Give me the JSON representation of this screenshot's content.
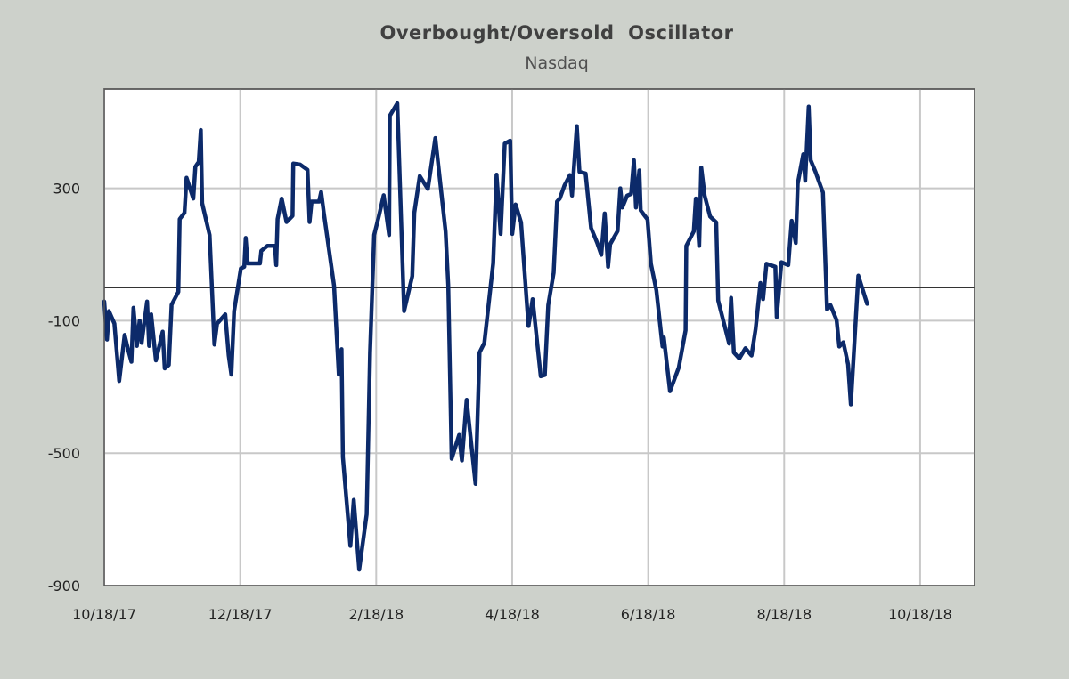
{
  "chart_data": {
    "type": "line",
    "title": "Overbought/Oversold  Oscillator",
    "subtitle": "Nasdaq",
    "xlabel": "",
    "ylabel": "",
    "x_units": "months since 10/18/17",
    "xlim": [
      0,
      12.8
    ],
    "ylim": [
      -900,
      600
    ],
    "grid": true,
    "reference_line": 0,
    "y_ticks": [
      300,
      -100,
      -500,
      -900
    ],
    "x_ticks": [
      {
        "value": 0,
        "label": "10/18/17"
      },
      {
        "value": 2,
        "label": "12/18/17"
      },
      {
        "value": 4,
        "label": "2/18/18"
      },
      {
        "value": 6,
        "label": "4/18/18"
      },
      {
        "value": 8,
        "label": "6/18/18"
      },
      {
        "value": 10,
        "label": "8/18/18"
      },
      {
        "value": 12,
        "label": "10/18/18"
      }
    ],
    "line_color": "#0c2a6a",
    "series": [
      {
        "name": "Nasdaq",
        "x": [
          0.0,
          0.04,
          0.07,
          0.15,
          0.22,
          0.3,
          0.35,
          0.4,
          0.43,
          0.48,
          0.52,
          0.55,
          0.63,
          0.66,
          0.69,
          0.76,
          0.86,
          0.89,
          0.95,
          0.99,
          1.09,
          1.11,
          1.18,
          1.21,
          1.31,
          1.34,
          1.39,
          1.42,
          1.44,
          1.55,
          1.62,
          1.66,
          1.78,
          1.83,
          1.87,
          1.91,
          2.01,
          2.06,
          2.08,
          2.11,
          2.29,
          2.31,
          2.4,
          2.51,
          2.53,
          2.55,
          2.61,
          2.68,
          2.77,
          2.78,
          2.88,
          2.99,
          3.02,
          3.05,
          3.16,
          3.19,
          3.23,
          3.38,
          3.45,
          3.49,
          3.51,
          3.62,
          3.67,
          3.75,
          3.86,
          3.91,
          3.97,
          4.04,
          4.11,
          4.19,
          4.2,
          4.31,
          4.41,
          4.53,
          4.56,
          4.64,
          4.76,
          4.87,
          5.02,
          5.06,
          5.11,
          5.22,
          5.26,
          5.33,
          5.46,
          5.52,
          5.59,
          5.72,
          5.77,
          5.83,
          5.89,
          5.97,
          6.0,
          6.05,
          6.13,
          6.22,
          6.24,
          6.3,
          6.42,
          6.48,
          6.53,
          6.61,
          6.66,
          6.7,
          6.77,
          6.85,
          6.88,
          6.95,
          6.99,
          7.08,
          7.16,
          7.25,
          7.31,
          7.36,
          7.41,
          7.44,
          7.55,
          7.59,
          7.62,
          7.69,
          7.75,
          7.79,
          7.82,
          7.87,
          7.89,
          7.99,
          8.04,
          8.12,
          8.21,
          8.23,
          8.32,
          8.45,
          8.55,
          8.56,
          8.67,
          8.7,
          8.75,
          8.78,
          8.83,
          8.91,
          9.0,
          9.03,
          9.19,
          9.22,
          9.26,
          9.34,
          9.43,
          9.52,
          9.58,
          9.65,
          9.69,
          9.74,
          9.87,
          9.89,
          9.96,
          10.06,
          10.11,
          10.17,
          10.2,
          10.28,
          10.31,
          10.36,
          10.39,
          10.46,
          10.57,
          10.63,
          10.68,
          10.77,
          10.81,
          10.87,
          10.94,
          10.98,
          11.09,
          11.22
        ],
        "y": [
          -42,
          -157,
          -71,
          -109,
          -282,
          -143,
          -186,
          -224,
          -61,
          -176,
          -100,
          -167,
          -42,
          -176,
          -81,
          -220,
          -133,
          -244,
          -234,
          -52,
          -13,
          207,
          226,
          332,
          269,
          365,
          380,
          476,
          255,
          159,
          -172,
          -109,
          -81,
          -205,
          -263,
          -71,
          58,
          63,
          150,
          73,
          73,
          111,
          126,
          126,
          68,
          207,
          269,
          198,
          217,
          375,
          372,
          356,
          198,
          260,
          260,
          289,
          226,
          6,
          -263,
          -186,
          -512,
          -780,
          -641,
          -852,
          -685,
          -196,
          159,
          217,
          279,
          159,
          519,
          557,
          -71,
          35,
          226,
          337,
          298,
          452,
          169,
          6,
          -517,
          -445,
          -522,
          -339,
          -593,
          -196,
          -167,
          73,
          341,
          162,
          435,
          444,
          162,
          251,
          197,
          -62,
          -116,
          -35,
          -268,
          -264,
          -53,
          45,
          260,
          269,
          309,
          340,
          278,
          488,
          350,
          345,
          180,
          135,
          99,
          224,
          63,
          131,
          171,
          300,
          242,
          278,
          283,
          385,
          242,
          354,
          233,
          206,
          72,
          -8,
          -178,
          -151,
          -313,
          -241,
          -129,
          126,
          170,
          269,
          126,
          363,
          278,
          215,
          197,
          -39,
          -169,
          -31,
          -196,
          -214,
          -183,
          -205,
          -125,
          14,
          -35,
          72,
          63,
          -89,
          77,
          68,
          202,
          135,
          314,
          403,
          323,
          547,
          385,
          350,
          287,
          -66,
          -53,
          -98,
          -178,
          -165,
          -232,
          -353,
          36,
          -49
        ]
      }
    ]
  }
}
